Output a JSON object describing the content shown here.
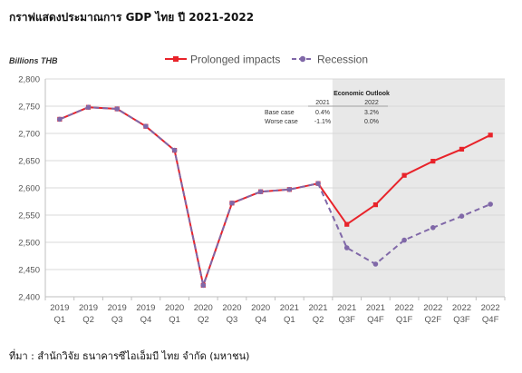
{
  "title": "กราฟแสดงประมาณการ GDP ไทย ปี 2021-2022",
  "source": "ที่มา : สำนักวิจัย ธนาคารซีไอเอ็มบี ไทย จำกัด (มหาชน)",
  "chart_data": {
    "type": "line",
    "ylabel": "Billions THB",
    "ylim": [
      2400,
      2800
    ],
    "yticks": [
      "2,400",
      "2,450",
      "2,500",
      "2,550",
      "2,600",
      "2,650",
      "2,700",
      "2,750",
      "2,800"
    ],
    "categories": [
      [
        "2019",
        "Q1"
      ],
      [
        "2019",
        "Q2"
      ],
      [
        "2019",
        "Q3"
      ],
      [
        "2019",
        "Q4"
      ],
      [
        "2020",
        "Q1"
      ],
      [
        "2020",
        "Q2"
      ],
      [
        "2020",
        "Q3"
      ],
      [
        "2020",
        "Q4"
      ],
      [
        "2021",
        "Q1"
      ],
      [
        "2021",
        "Q2"
      ],
      [
        "2021",
        "Q3F"
      ],
      [
        "2021",
        "Q4F"
      ],
      [
        "2022",
        "Q1F"
      ],
      [
        "2022",
        "Q2F"
      ],
      [
        "2022",
        "Q3F"
      ],
      [
        "2022",
        "Q4F"
      ]
    ],
    "forecast_shading_from_index": 10,
    "legend_position": "top",
    "grid": "horizontal",
    "series": [
      {
        "name": "Prolonged impacts",
        "color": "#e8232a",
        "style": "solid",
        "marker": "square",
        "values": [
          2726,
          2748,
          2745,
          2713,
          2669,
          2421,
          2572,
          2593,
          2597,
          2608,
          2533,
          2569,
          2623,
          2649,
          2671,
          2697
        ]
      },
      {
        "name": "Recession",
        "color": "#8068a8",
        "style": "dashed",
        "marker": "circle",
        "values": [
          2726,
          2748,
          2745,
          2713,
          2669,
          2421,
          2572,
          2593,
          2597,
          2608,
          2490,
          2460,
          2504,
          2527,
          2548,
          2570
        ]
      }
    ],
    "annotation": {
      "title": "Economic Outlook",
      "headers": [
        "2021",
        "2022"
      ],
      "rows": [
        {
          "label": "Base case",
          "values": [
            "0.4%",
            "3.2%"
          ]
        },
        {
          "label": "Worse case",
          "values": [
            "-1.1%",
            "0.0%"
          ]
        }
      ]
    }
  },
  "colors": {
    "forecast_shade": "#e8e8e8",
    "grid": "#d9d9d9",
    "axis": "#bfbfbf"
  }
}
